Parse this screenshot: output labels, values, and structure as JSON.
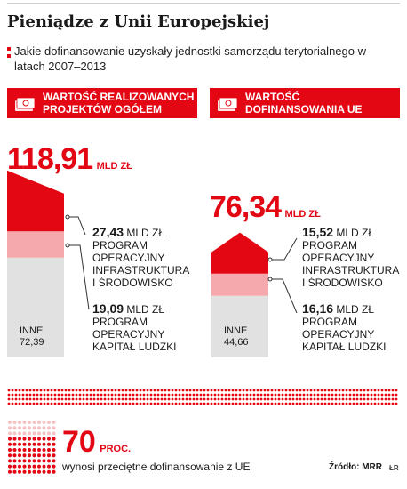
{
  "title": "Pieniądze z Unii Europejskiej",
  "subtitle": "Jakie dofinansowanie uzyskały jednostki samorządu terytorialnego w latach 2007–2013",
  "colors": {
    "accent": "#e30613",
    "pink": "#f6a9ac",
    "grey": "#e1e1e1"
  },
  "chart_data": [
    {
      "type": "bar",
      "title": "WARTOŚĆ REALIZOWANYCH PROJEKTÓW OGÓŁEM",
      "unit": "MLD ZŁ",
      "total": "118,91",
      "total_value": 118.91,
      "segments": [
        {
          "name": "PROGRAM OPERACYJNY INFRASTRUKTURA I ŚRODOWISKO",
          "value": 27.43,
          "value_label": "27,43",
          "color": "#e30613"
        },
        {
          "name": "PROGRAM OPERACYJNY KAPITAŁ LUDZKI",
          "value": 19.09,
          "value_label": "19,09",
          "color": "#f6a9ac"
        },
        {
          "name": "INNE",
          "value": 72.39,
          "value_label": "72,39",
          "color": "#e1e1e1"
        }
      ]
    },
    {
      "type": "bar",
      "title": "WARTOŚĆ DOFINANSOWANIA UE",
      "unit": "MLD ZŁ",
      "total": "76,34",
      "total_value": 76.34,
      "segments": [
        {
          "name": "PROGRAM OPERACYJNY INFRASTRUKTURA I ŚRODOWISKO",
          "value": 15.52,
          "value_label": "15,52",
          "color": "#e30613"
        },
        {
          "name": "PROGRAM OPERACYJNY KAPITAŁ LUDZKI",
          "value": 16.16,
          "value_label": "16,16",
          "color": "#f6a9ac"
        },
        {
          "name": "INNE",
          "value": 44.66,
          "value_label": "44,66",
          "color": "#e1e1e1"
        }
      ]
    }
  ],
  "labels": {
    "left_p1": {
      "value": "27,43",
      "unit": "MLD ZŁ",
      "l1": "PROGRAM",
      "l2": "OPERACYJNY",
      "l3": "INFRASTRUKTURA",
      "l4": "I ŚRODOWISKO"
    },
    "left_p2": {
      "value": "19,09",
      "unit": "MLD ZŁ",
      "l1": "PROGRAM",
      "l2": "OPERACYJNY",
      "l3": "KAPITAŁ LUDZKI"
    },
    "left_inne": {
      "name": "INNE",
      "value": "72,39"
    },
    "right_p1": {
      "value": "15,52",
      "unit": "MLD ZŁ",
      "l1": "PROGRAM",
      "l2": "OPERACYJNY",
      "l3": "INFRASTRUKTURA",
      "l4": "I ŚRODOWISKO"
    },
    "right_p2": {
      "value": "16,16",
      "unit": "MLD ZŁ",
      "l1": "PROGRAM",
      "l2": "OPERACYJNY",
      "l3": "KAPITAŁ LUDZKI"
    },
    "right_inne": {
      "name": "INNE",
      "value": "44,66"
    }
  },
  "headers": {
    "left_l1": "WARTOŚĆ REALIZOWANYCH",
    "left_l2": "PROJEKTÓW OGÓŁEM",
    "right_l1": "WARTOŚĆ",
    "right_l2": "DOFINANSOWANIA UE"
  },
  "footer": {
    "percent": "70",
    "percent_value": 70,
    "percent_unit": "PROC.",
    "note": "wynosi przeciętne dofinansowanie z UE",
    "source": "Źródło: MRR",
    "signature": "ŁR"
  }
}
